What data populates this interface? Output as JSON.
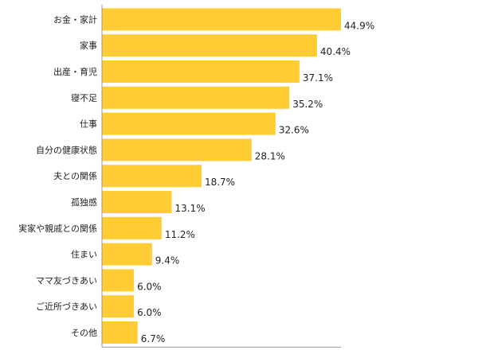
{
  "chart_data": {
    "type": "bar",
    "orientation": "horizontal",
    "title": "",
    "xlabel": "",
    "ylabel": "",
    "categories": [
      "お金・家計",
      "家事",
      "出産・育児",
      "寝不足",
      "仕事",
      "自分の健康状態",
      "夫との関係",
      "孤独感",
      "実家や親戚との関係",
      "住まい",
      "ママ友づきあい",
      "ご近所づきあい",
      "その他"
    ],
    "values": [
      44.9,
      40.4,
      37.1,
      35.2,
      32.6,
      28.1,
      18.7,
      13.1,
      11.2,
      9.4,
      6.0,
      6.0,
      6.7
    ],
    "value_labels": [
      "44.9%",
      "40.4%",
      "37.1%",
      "35.2%",
      "32.6%",
      "28.1%",
      "18.7%",
      "13.1%",
      "11.2%",
      "9.4%",
      "6.0%",
      "6.0%",
      "6.7%"
    ],
    "xlim": [
      0,
      100
    ],
    "grid": false,
    "legend": "none",
    "bar_color": "#FFCC33"
  }
}
